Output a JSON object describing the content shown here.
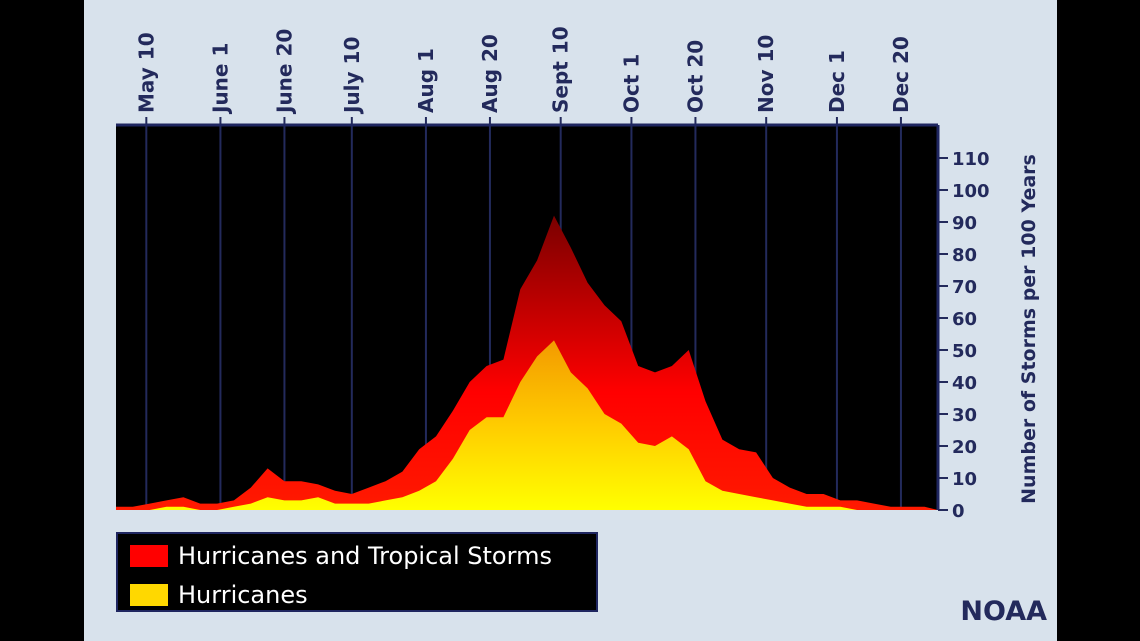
{
  "chart_data": {
    "type": "area",
    "title": "",
    "xlabel": "",
    "ylabel": "Number of Storms per 100 Years",
    "ylim": [
      0,
      115
    ],
    "yticks": [
      0,
      10,
      20,
      30,
      40,
      50,
      60,
      70,
      80,
      90,
      100,
      110
    ],
    "xlim": [
      "May 1",
      "Dec 31"
    ],
    "xticks": [
      "May 10",
      "June 1",
      "June 20",
      "July 10",
      "Aug 1",
      "Aug 20",
      "Sept 10",
      "Oct 1",
      "Oct 20",
      "Nov 10",
      "Dec 1",
      "Dec 20"
    ],
    "grid": "vertical lines at x ticks",
    "legend_placement": "bottom-left",
    "x": [
      "May 1",
      "May 6",
      "May 11",
      "May 16",
      "May 21",
      "May 26",
      "May 31",
      "Jun 5",
      "Jun 10",
      "Jun 15",
      "Jun 20",
      "Jun 25",
      "Jun 30",
      "Jul 5",
      "Jul 10",
      "Jul 15",
      "Jul 20",
      "Jul 25",
      "Jul 30",
      "Aug 4",
      "Aug 9",
      "Aug 14",
      "Aug 19",
      "Aug 24",
      "Aug 29",
      "Sep 3",
      "Sep 8",
      "Sep 13",
      "Sep 18",
      "Sep 23",
      "Sep 28",
      "Oct 3",
      "Oct 8",
      "Oct 13",
      "Oct 18",
      "Oct 23",
      "Oct 28",
      "Nov 2",
      "Nov 7",
      "Nov 12",
      "Nov 17",
      "Nov 22",
      "Nov 27",
      "Dec 2",
      "Dec 7",
      "Dec 12",
      "Dec 17",
      "Dec 22",
      "Dec 27",
      "Dec 31"
    ],
    "series": [
      {
        "name": "Hurricanes and Tropical Storms",
        "color": "#ff0000",
        "values": [
          1,
          1,
          2,
          3,
          4,
          2,
          2,
          3,
          7,
          13,
          9,
          9,
          8,
          6,
          5,
          7,
          9,
          12,
          19,
          23,
          31,
          40,
          45,
          47,
          69,
          78,
          92,
          82,
          71,
          64,
          59,
          45,
          43,
          45,
          50,
          34,
          22,
          19,
          18,
          10,
          7,
          5,
          5,
          3,
          3,
          2,
          1,
          1,
          1,
          0
        ]
      },
      {
        "name": "Hurricanes",
        "color": "#ffd800",
        "values": [
          0,
          0,
          0,
          1,
          1,
          0,
          0,
          1,
          2,
          4,
          3,
          3,
          4,
          2,
          2,
          2,
          3,
          4,
          6,
          9,
          16,
          25,
          29,
          29,
          40,
          48,
          53,
          43,
          38,
          30,
          27,
          21,
          20,
          23,
          19,
          9,
          6,
          5,
          4,
          3,
          2,
          1,
          1,
          1,
          0,
          0,
          0,
          0,
          0,
          0
        ]
      }
    ]
  },
  "legend": {
    "items": [
      {
        "label": "Hurricanes and Tropical Storms",
        "color": "#ff0000"
      },
      {
        "label": "Hurricanes",
        "color": "#ffd800"
      }
    ]
  },
  "source_label": "NOAA"
}
